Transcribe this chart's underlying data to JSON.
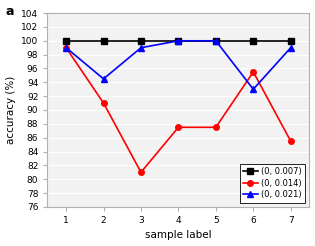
{
  "x": [
    1,
    2,
    3,
    4,
    5,
    6,
    7
  ],
  "series": [
    {
      "label": "(0, 0.007)",
      "color": "#000000",
      "marker": "s",
      "linewidth": 1.2,
      "markersize": 4,
      "values": [
        100.0,
        100.0,
        100.0,
        100.0,
        100.0,
        100.0,
        100.0
      ]
    },
    {
      "label": "(0, 0.014)",
      "color": "#ff0000",
      "marker": "o",
      "linewidth": 1.2,
      "markersize": 4,
      "values": [
        99.0,
        91.0,
        81.0,
        87.5,
        87.5,
        95.5,
        85.5
      ]
    },
    {
      "label": "(0, 0.021)",
      "color": "#0000ff",
      "marker": "^",
      "linewidth": 1.2,
      "markersize": 4,
      "values": [
        99.0,
        94.5,
        99.0,
        100.0,
        100.0,
        93.0,
        99.0
      ]
    }
  ],
  "xlabel": "sample label",
  "ylabel": "accuracy (%)",
  "ylim": [
    76,
    104
  ],
  "xlim": [
    0.5,
    7.5
  ],
  "yticks": [
    76,
    78,
    80,
    82,
    84,
    86,
    88,
    90,
    92,
    94,
    96,
    98,
    100,
    102,
    104
  ],
  "xticks": [
    1,
    2,
    3,
    4,
    5,
    6,
    7
  ],
  "legend_loc": "lower right",
  "panel_label": "a",
  "background_color": "#ffffff",
  "axes_bg": "#f2f2f2",
  "grid_color": "#ffffff",
  "spine_color": "#b0b0b0"
}
